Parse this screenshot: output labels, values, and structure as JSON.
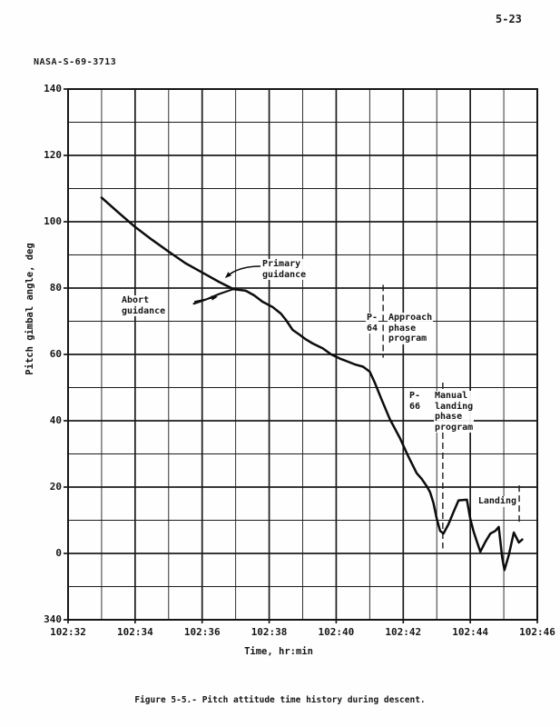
{
  "page": {
    "page_number": "5-23",
    "doc_id": "NASA-S-69-3713",
    "caption": "Figure 5-5.- Pitch attitude time history during descent."
  },
  "chart_data": {
    "type": "line",
    "title": "Pitch attitude time history during descent",
    "xlabel": "Time, hr:min",
    "ylabel": "Pitch gimbal angle, deg",
    "xlim": [
      32,
      46
    ],
    "ylim": [
      -20,
      140
    ],
    "x_minor_step": 1,
    "y_minor_step": 10,
    "grid": true,
    "x_ticks": [
      {
        "v": 32,
        "label": "102:32"
      },
      {
        "v": 34,
        "label": "102:34"
      },
      {
        "v": 36,
        "label": "102:36"
      },
      {
        "v": 38,
        "label": "102:38"
      },
      {
        "v": 40,
        "label": "102:40"
      },
      {
        "v": 42,
        "label": "102:42"
      },
      {
        "v": 44,
        "label": "102:44"
      },
      {
        "v": 46,
        "label": "102:46"
      }
    ],
    "y_ticks": [
      {
        "v": 140,
        "label": "140"
      },
      {
        "v": 120,
        "label": "120"
      },
      {
        "v": 100,
        "label": "100"
      },
      {
        "v": 80,
        "label": "80"
      },
      {
        "v": 60,
        "label": "60"
      },
      {
        "v": 40,
        "label": "40"
      },
      {
        "v": 20,
        "label": "20"
      },
      {
        "v": 0,
        "label": "0"
      },
      {
        "v": -20,
        "label": "340"
      }
    ],
    "series": [
      {
        "name": "Primary guidance",
        "points": [
          [
            33.0,
            107.3
          ],
          [
            33.5,
            102.8
          ],
          [
            34.0,
            98.4
          ],
          [
            34.5,
            94.6
          ],
          [
            35.0,
            91.0
          ],
          [
            35.5,
            87.5
          ],
          [
            36.0,
            84.7
          ],
          [
            36.5,
            81.9
          ],
          [
            36.93,
            79.7
          ],
          [
            37.3,
            79.2
          ],
          [
            37.55,
            77.8
          ],
          [
            37.8,
            75.9
          ],
          [
            38.1,
            74.3
          ],
          [
            38.35,
            72.3
          ],
          [
            38.5,
            70.4
          ],
          [
            38.7,
            67.4
          ],
          [
            38.9,
            66.0
          ],
          [
            39.1,
            64.5
          ],
          [
            39.3,
            63.3
          ],
          [
            39.6,
            61.8
          ],
          [
            39.85,
            60.0
          ],
          [
            40.1,
            58.8
          ],
          [
            40.35,
            57.8
          ],
          [
            40.55,
            57.0
          ],
          [
            40.8,
            56.3
          ],
          [
            41.0,
            54.8
          ],
          [
            41.15,
            51.5
          ],
          [
            41.35,
            46.5
          ],
          [
            41.6,
            40.5
          ],
          [
            41.9,
            34.8
          ],
          [
            42.15,
            29.3
          ],
          [
            42.4,
            24.2
          ],
          [
            42.55,
            22.5
          ],
          [
            42.7,
            20.3
          ],
          [
            42.8,
            18.5
          ],
          [
            42.9,
            15.3
          ],
          [
            43.0,
            10.5
          ],
          [
            43.1,
            6.8
          ],
          [
            43.2,
            6.0
          ],
          [
            43.35,
            8.8
          ],
          [
            43.5,
            12.5
          ],
          [
            43.65,
            16.0
          ],
          [
            43.9,
            16.2
          ],
          [
            44.0,
            10.5
          ],
          [
            44.1,
            6.6
          ],
          [
            44.2,
            3.5
          ],
          [
            44.3,
            0.5
          ],
          [
            44.45,
            3.5
          ],
          [
            44.6,
            6.0
          ],
          [
            44.75,
            6.8
          ],
          [
            44.85,
            8.0
          ],
          [
            44.95,
            -1.0
          ],
          [
            45.02,
            -5.0
          ],
          [
            45.15,
            -0.5
          ],
          [
            45.3,
            6.3
          ],
          [
            45.45,
            3.3
          ],
          [
            45.55,
            4.2
          ]
        ]
      },
      {
        "name": "Abort guidance",
        "points": [
          [
            35.75,
            75.3
          ],
          [
            36.1,
            76.5
          ],
          [
            36.5,
            78.2
          ],
          [
            36.93,
            79.7
          ]
        ]
      }
    ],
    "events": [
      {
        "code": "P-64",
        "name": "Approach phase program",
        "t": 41.4,
        "y_top": 81,
        "y_bottom": 59
      },
      {
        "code": "P-66",
        "name": "Manual landing\nphase program",
        "t": 43.18,
        "y_top": 51.5,
        "y_bottom": 1.5
      },
      {
        "code": "",
        "name": "Landing",
        "t": 45.46,
        "y_top": 20.5,
        "y_bottom": 8.5
      }
    ],
    "annotations": [
      {
        "label": "Primary guidance"
      },
      {
        "label": "Abort guidance"
      }
    ]
  }
}
